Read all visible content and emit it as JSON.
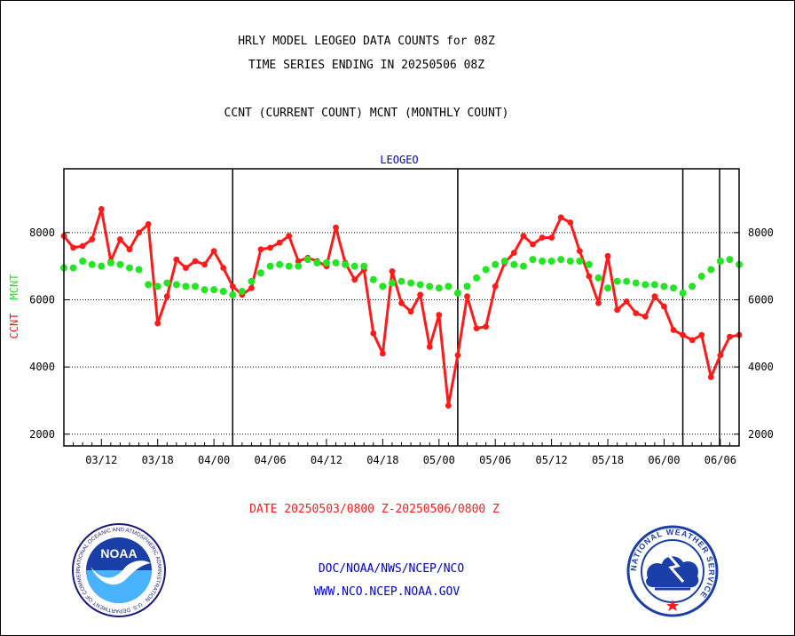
{
  "header": {
    "line1": "HRLY MODEL LEOGEO DATA COUNTS for 08Z",
    "line2": "TIME SERIES ENDING IN 20250506 08Z",
    "line3": "CCNT (CURRENT COUNT) MCNT (MONTHLY COUNT)"
  },
  "footer": {
    "date_range": "DATE 20250503/0800 Z-20250506/0800 Z",
    "org_path": "DOC/NOAA/NWS/NCEP/NCO",
    "website": "WWW.NCO.NCEP.NOAA.GOV"
  },
  "logos": {
    "noaa": {
      "text": "NOAA",
      "ring_text": "NATIONAL OCEANIC AND ATMOSPHERIC ADMINISTRATION · U.S. DEPARTMENT OF COMMERCE"
    },
    "nws": {
      "ring_text": "NATIONAL WEATHER SERVICE"
    }
  },
  "colors": {
    "ccnt": "#ff1a1a",
    "mcnt": "#22e622",
    "title": "#0000cc",
    "text": "#000000",
    "date": "#ff1a1a",
    "links": "#0000cc"
  },
  "chart_data": {
    "type": "line",
    "title": "LEOGEO",
    "ylabel_ccnt": "CCNT",
    "ylabel_mcnt": "MCNT",
    "ylim": [
      1650,
      9900
    ],
    "yticks": [
      2000,
      4000,
      6000,
      8000
    ],
    "ytick_labels": [
      "2000",
      "4000",
      "6000",
      "8000"
    ],
    "grid": "horizontal dotted at y ticks",
    "day_separators_hour": [
      18,
      42,
      66
    ],
    "xlim_hour": [
      0,
      72
    ],
    "x_tick_labels": [
      {
        "hour": 4,
        "label": "03/12"
      },
      {
        "hour": 10,
        "label": "03/18"
      },
      {
        "hour": 16,
        "label": "04/00"
      },
      {
        "hour": 22,
        "label": "04/06"
      },
      {
        "hour": 28,
        "label": "04/12"
      },
      {
        "hour": 34,
        "label": "04/18"
      },
      {
        "hour": 40,
        "label": "05/00"
      },
      {
        "hour": 46,
        "label": "05/06"
      },
      {
        "hour": 52,
        "label": "05/12"
      },
      {
        "hour": 58,
        "label": "05/18"
      },
      {
        "hour": 64,
        "label": "06/00"
      },
      {
        "hour": 70,
        "label": "06/06"
      }
    ],
    "series": [
      {
        "name": "CCNT",
        "color": "#ff1a1a",
        "values": [
          7900,
          7550,
          7600,
          7800,
          8700,
          7150,
          7800,
          7500,
          8000,
          8250,
          5300,
          6100,
          7200,
          6950,
          7150,
          7050,
          7450,
          6950,
          6400,
          6150,
          6350,
          7500,
          7550,
          7700,
          7900,
          7150,
          7250,
          7150,
          7000,
          8150,
          7100,
          6600,
          6900,
          5000,
          4400,
          6850,
          5900,
          5650,
          6150,
          4600,
          5550,
          2850,
          4350,
          6100,
          5150,
          5200,
          6400,
          7100,
          7400,
          7900,
          7650,
          7850,
          7850,
          8450,
          8300,
          7450,
          6700,
          5900,
          7300,
          5700,
          5950,
          5600,
          5500,
          6100,
          5800,
          5100,
          4950,
          4800,
          4950,
          3700,
          4350,
          4900,
          4950
        ]
      },
      {
        "name": "MCNT",
        "color": "#22e622",
        "values": [
          6950,
          6950,
          7150,
          7050,
          7000,
          7100,
          7050,
          6950,
          6900,
          6450,
          6400,
          6500,
          6450,
          6400,
          6400,
          6300,
          6300,
          6250,
          6150,
          6250,
          6550,
          6800,
          7000,
          7050,
          7000,
          7000,
          7200,
          7100,
          7100,
          7100,
          7050,
          7000,
          7000,
          6600,
          6400,
          6500,
          6550,
          6500,
          6450,
          6400,
          6350,
          6400,
          6200,
          6400,
          6650,
          6900,
          7050,
          7150,
          7050,
          7000,
          7200,
          7150,
          7150,
          7200,
          7150,
          7150,
          7050,
          6650,
          6350,
          6550,
          6550,
          6500,
          6450,
          6450,
          6400,
          6350,
          6200,
          6400,
          6700,
          6900,
          7150,
          7200,
          7050
        ]
      }
    ]
  }
}
